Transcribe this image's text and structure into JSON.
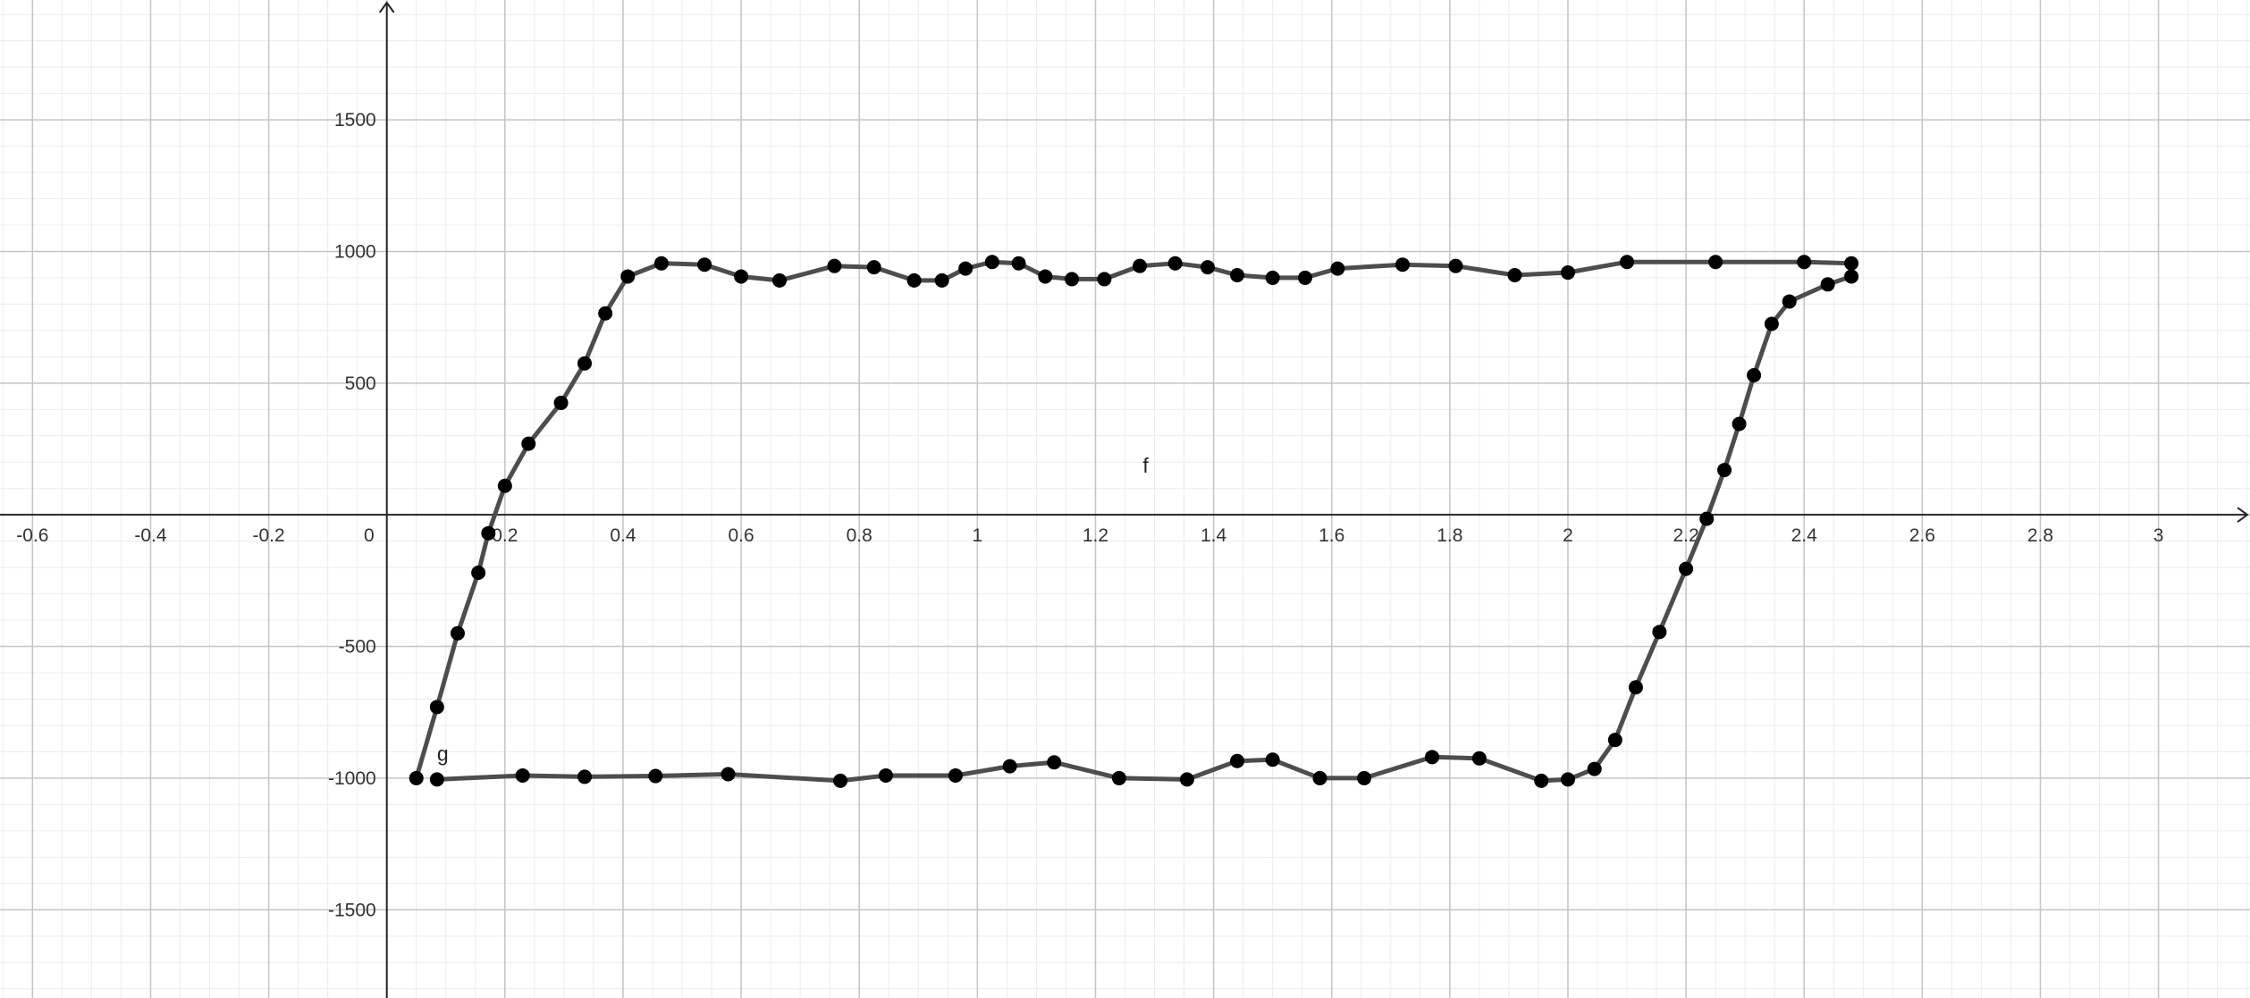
{
  "chart_data": {
    "type": "line",
    "title": "",
    "xlabel": "",
    "ylabel": "",
    "xlim": [
      -0.655,
      3.155
    ],
    "ylim": [
      -1835,
      1955
    ],
    "grid": true,
    "x_ticks": [
      {
        "value": -0.6,
        "label": "-0.6"
      },
      {
        "value": -0.4,
        "label": "-0.4"
      },
      {
        "value": -0.2,
        "label": "-0.2"
      },
      {
        "value": 0,
        "label": "0"
      },
      {
        "value": 0.2,
        "label": "0.2"
      },
      {
        "value": 0.4,
        "label": "0.4"
      },
      {
        "value": 0.6,
        "label": "0.6"
      },
      {
        "value": 0.8,
        "label": "0.8"
      },
      {
        "value": 1,
        "label": "1"
      },
      {
        "value": 1.2,
        "label": "1.2"
      },
      {
        "value": 1.4,
        "label": "1.4"
      },
      {
        "value": 1.6,
        "label": "1.6"
      },
      {
        "value": 1.8,
        "label": "1.8"
      },
      {
        "value": 2,
        "label": "2"
      },
      {
        "value": 2.2,
        "label": "2.2"
      },
      {
        "value": 2.4,
        "label": "2.4"
      },
      {
        "value": 2.6,
        "label": "2.6"
      },
      {
        "value": 2.8,
        "label": "2.8"
      },
      {
        "value": 3,
        "label": "3"
      }
    ],
    "y_ticks": [
      {
        "value": 1500,
        "label": "1500"
      },
      {
        "value": 1000,
        "label": "1000"
      },
      {
        "value": 500,
        "label": "500"
      },
      {
        "value": -500,
        "label": "-500"
      },
      {
        "value": -1000,
        "label": "-1000"
      },
      {
        "value": -1500,
        "label": "-1500"
      }
    ],
    "series": [
      {
        "name": "f",
        "label_position": [
          1.28,
          160
        ],
        "color": "#4d4d4d",
        "x": [
          0.05,
          0.085,
          0.12,
          0.155,
          0.172,
          0.2,
          0.24,
          0.295,
          0.335,
          0.37,
          0.408,
          0.465,
          0.538,
          0.6,
          0.665,
          0.758,
          0.825,
          0.893,
          0.94,
          0.98,
          1.025,
          1.07,
          1.115,
          1.16,
          1.215,
          1.275,
          1.335,
          1.39,
          1.44,
          1.5,
          1.555,
          1.61,
          1.72,
          1.81,
          1.91,
          2.0,
          2.1,
          2.25,
          2.4,
          2.48
        ],
        "y": [
          -1000,
          -730,
          -450,
          -220,
          -70,
          110,
          270,
          425,
          575,
          765,
          905,
          955,
          950,
          905,
          890,
          945,
          940,
          890,
          890,
          935,
          960,
          955,
          905,
          895,
          895,
          945,
          955,
          940,
          910,
          900,
          900,
          935,
          950,
          945,
          910,
          920,
          960,
          960,
          960,
          955
        ]
      },
      {
        "name": "g",
        "label_position": [
          0.085,
          -935
        ],
        "color": "#4d4d4d",
        "x": [
          0.085,
          0.23,
          0.335,
          0.455,
          0.578,
          0.768,
          0.845,
          0.963,
          1.055,
          1.13,
          1.24,
          1.355,
          1.44,
          1.5,
          1.58,
          1.655,
          1.77,
          1.85,
          1.955,
          2.0,
          2.045,
          2.08,
          2.115,
          2.155,
          2.2,
          2.235,
          2.265,
          2.29,
          2.315,
          2.345,
          2.375,
          2.44,
          2.48
        ],
        "y": [
          -1005,
          -990,
          -995,
          -992,
          -985,
          -1010,
          -990,
          -990,
          -955,
          -940,
          -1000,
          -1005,
          -935,
          -930,
          -1000,
          -1000,
          -920,
          -925,
          -1010,
          -1005,
          -965,
          -855,
          -655,
          -445,
          -205,
          -15,
          170,
          345,
          530,
          725,
          810,
          875,
          905
        ]
      }
    ]
  }
}
